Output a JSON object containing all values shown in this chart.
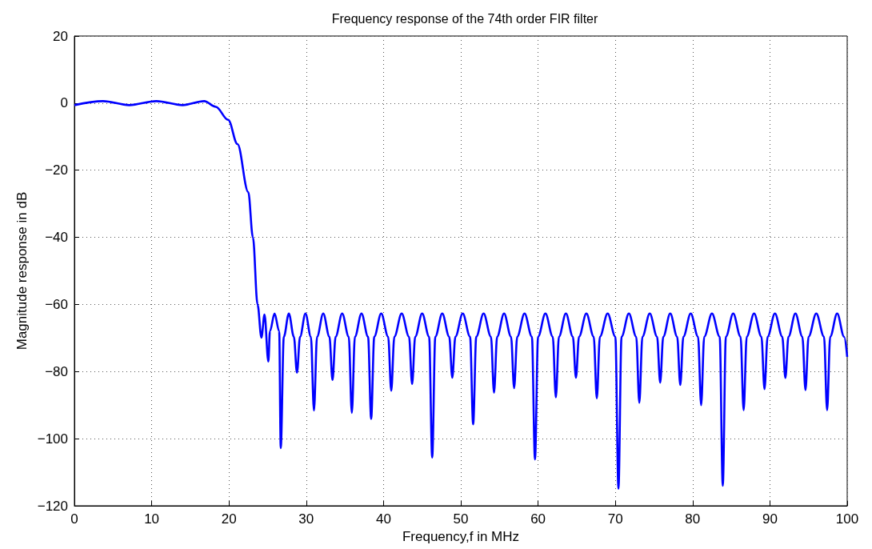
{
  "chart_data": {
    "type": "line",
    "title": "Frequency response of the 74th order FIR filter",
    "xlabel": "Frequency,f in MHz",
    "ylabel": "Magnitude response in dB",
    "xlim": [
      0,
      100
    ],
    "xticks": [
      0,
      10,
      20,
      30,
      40,
      50,
      60,
      70,
      80,
      90,
      100
    ],
    "ylim": [
      -120,
      20
    ],
    "yticks": [
      -120,
      -100,
      -80,
      -60,
      -40,
      -20,
      0,
      20
    ],
    "grid": true,
    "marker": "none",
    "line_style": "solid",
    "series": [
      {
        "color": "#0000ff",
        "x": [
          0,
          3.7,
          7.1,
          10.6,
          14.0,
          16.8,
          18.3,
          19.9,
          21.1,
          22.5,
          23.1,
          23.7,
          24.2,
          24.6,
          25.1,
          25.3,
          25.9,
          26.5,
          26.7,
          27.1,
          27.75,
          28.4,
          28.8,
          29.2,
          29.9,
          30.6,
          31.0,
          31.4,
          32.2,
          33.0,
          33.4,
          33.8,
          34.65,
          35.5,
          35.9,
          36.3,
          37.15,
          38.0,
          38.4,
          38.8,
          39.7,
          40.6,
          41.0,
          41.4,
          42.35,
          43.3,
          43.7,
          44.1,
          45.0,
          45.9,
          46.3,
          46.7,
          47.6,
          48.5,
          48.9,
          49.3,
          50.25,
          51.2,
          51.6,
          52.0,
          52.95,
          53.9,
          54.3,
          54.7,
          55.6,
          56.5,
          56.9,
          57.3,
          58.25,
          59.2,
          59.6,
          60.0,
          60.95,
          61.9,
          62.3,
          62.7,
          63.6,
          64.5,
          64.9,
          65.3,
          66.25,
          67.2,
          67.6,
          68.0,
          69.0,
          70.0,
          70.4,
          70.8,
          71.75,
          72.7,
          73.1,
          73.5,
          74.45,
          75.4,
          75.8,
          76.2,
          77.1,
          78.0,
          78.4,
          78.8,
          79.75,
          80.7,
          81.1,
          81.5,
          82.5,
          83.5,
          83.9,
          84.3,
          85.25,
          86.2,
          86.6,
          87.0,
          87.95,
          88.9,
          89.3,
          89.7,
          90.65,
          91.6,
          92.0,
          92.4,
          93.3,
          94.2,
          94.6,
          95.0,
          96.0,
          97.0,
          97.4,
          97.8,
          98.7,
          99.6,
          100
        ],
        "values": [
          -0.6,
          0.6,
          -0.6,
          0.6,
          -0.6,
          0.6,
          -1.1,
          -5.0,
          -12.2,
          -26.5,
          -40,
          -60,
          -69.9,
          -63.0,
          -77.0,
          -68,
          -62.7,
          -68,
          -102.8,
          -69.6,
          -62.7,
          -69.6,
          -80.3,
          -69.6,
          -62.7,
          -69.6,
          -91.6,
          -69.6,
          -62.7,
          -69.6,
          -82.5,
          -69.6,
          -62.7,
          -69.6,
          -92.3,
          -69.6,
          -62.7,
          -69.6,
          -94.1,
          -69.6,
          -62.7,
          -69.6,
          -85.7,
          -69.6,
          -62.7,
          -69.6,
          -83.7,
          -69.6,
          -62.7,
          -69.6,
          -105.6,
          -69.6,
          -62.7,
          -69.6,
          -81.8,
          -69.6,
          -62.7,
          -69.6,
          -95.7,
          -69.6,
          -62.7,
          -69.6,
          -86.3,
          -69.6,
          -62.7,
          -69.6,
          -84.9,
          -69.6,
          -62.7,
          -69.6,
          -106.2,
          -69.6,
          -62.7,
          -69.6,
          -87.7,
          -69.6,
          -62.7,
          -69.6,
          -81.8,
          -69.6,
          -62.7,
          -69.6,
          -88.0,
          -69.6,
          -62.7,
          -69.6,
          -114.9,
          -69.6,
          -62.7,
          -69.6,
          -89.3,
          -69.6,
          -62.7,
          -69.6,
          -83.3,
          -69.6,
          -62.7,
          -69.6,
          -84.0,
          -69.6,
          -62.7,
          -69.6,
          -90.0,
          -69.6,
          -62.7,
          -69.6,
          -114.0,
          -69.6,
          -62.7,
          -69.6,
          -91.5,
          -69.6,
          -62.7,
          -69.6,
          -85.2,
          -69.6,
          -62.7,
          -69.6,
          -81.9,
          -69.6,
          -62.7,
          -69.6,
          -85.5,
          -69.6,
          -62.7,
          -69.6,
          -91.5,
          -69.6,
          -62.7,
          -69.6,
          -75.6
        ]
      }
    ]
  }
}
